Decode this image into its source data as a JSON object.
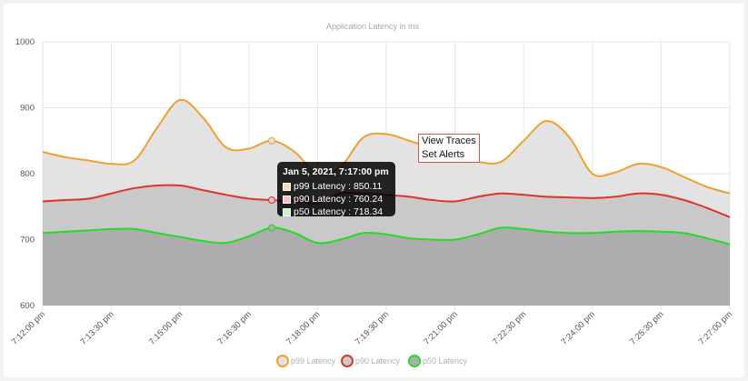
{
  "chart_data": {
    "type": "area",
    "title": "Application Latency in ms",
    "ylim": [
      600,
      1000
    ],
    "yticks": [
      600,
      700,
      800,
      900,
      1000
    ],
    "x": [
      "7:12:00 pm",
      "7:12:30 pm",
      "7:13:00 pm",
      "7:13:30 pm",
      "7:14:00 pm",
      "7:14:30 pm",
      "7:15:00 pm",
      "7:15:30 pm",
      "7:16:00 pm",
      "7:16:30 pm",
      "7:17:00 pm",
      "7:17:30 pm",
      "7:18:00 pm",
      "7:18:30 pm",
      "7:19:00 pm",
      "7:19:30 pm",
      "7:20:00 pm",
      "7:20:30 pm",
      "7:21:00 pm",
      "7:21:30 pm",
      "7:22:00 pm",
      "7:22:30 pm",
      "7:23:00 pm",
      "7:23:30 pm",
      "7:24:00 pm",
      "7:24:30 pm",
      "7:25:00 pm",
      "7:25:30 pm",
      "7:26:00 pm",
      "7:26:30 pm",
      "7:27:00 pm"
    ],
    "xtick_labels": [
      "7:12:00 pm",
      "7:13:30 pm",
      "7:15:00 pm",
      "7:16:30 pm",
      "7:18:00 pm",
      "7:19:30 pm",
      "7:21:00 pm",
      "7:22:30 pm",
      "7:24:00 pm",
      "7:25:30 pm",
      "7:27:00 pm"
    ],
    "series": [
      {
        "name": "p99 Latency",
        "color": "#f0a030",
        "fill": "#e3e3e3",
        "values": [
          833,
          825,
          820,
          815,
          820,
          870,
          912,
          885,
          840,
          838,
          850,
          833,
          800,
          810,
          855,
          860,
          850,
          838,
          827,
          818,
          818,
          850,
          880,
          855,
          800,
          802,
          815,
          810,
          795,
          780,
          770
        ]
      },
      {
        "name": "p90 Latency",
        "color": "#e0332e",
        "fill": "#c9c9c9",
        "values": [
          758,
          760,
          762,
          770,
          778,
          782,
          782,
          775,
          768,
          762,
          760,
          758,
          755,
          770,
          770,
          768,
          765,
          760,
          758,
          765,
          770,
          768,
          765,
          764,
          763,
          765,
          770,
          768,
          760,
          748,
          734
        ]
      },
      {
        "name": "p50 Latency",
        "color": "#22dd22",
        "fill": "#adadad",
        "values": [
          710,
          712,
          714,
          716,
          716,
          710,
          704,
          698,
          695,
          705,
          718,
          710,
          695,
          700,
          710,
          708,
          702,
          700,
          700,
          708,
          718,
          716,
          712,
          710,
          710,
          712,
          713,
          712,
          710,
          702,
          693
        ]
      }
    ],
    "legend_position": "bottom",
    "grid": true
  },
  "tooltip": {
    "title": "Jan 5, 2021, 7:17:00 pm",
    "rows": [
      {
        "text": "p99 Latency : 850.11",
        "color": "#f0a030",
        "fill": "#f7d9b8"
      },
      {
        "text": "p90 Latency : 760.24",
        "color": "#e0332e",
        "fill": "#f3c1bf"
      },
      {
        "text": "p50 Latency : 718.34",
        "color": "#22dd22",
        "fill": "#c8f5c8"
      }
    ]
  },
  "context_menu": {
    "items": [
      "View Traces",
      "Set Alerts"
    ]
  }
}
